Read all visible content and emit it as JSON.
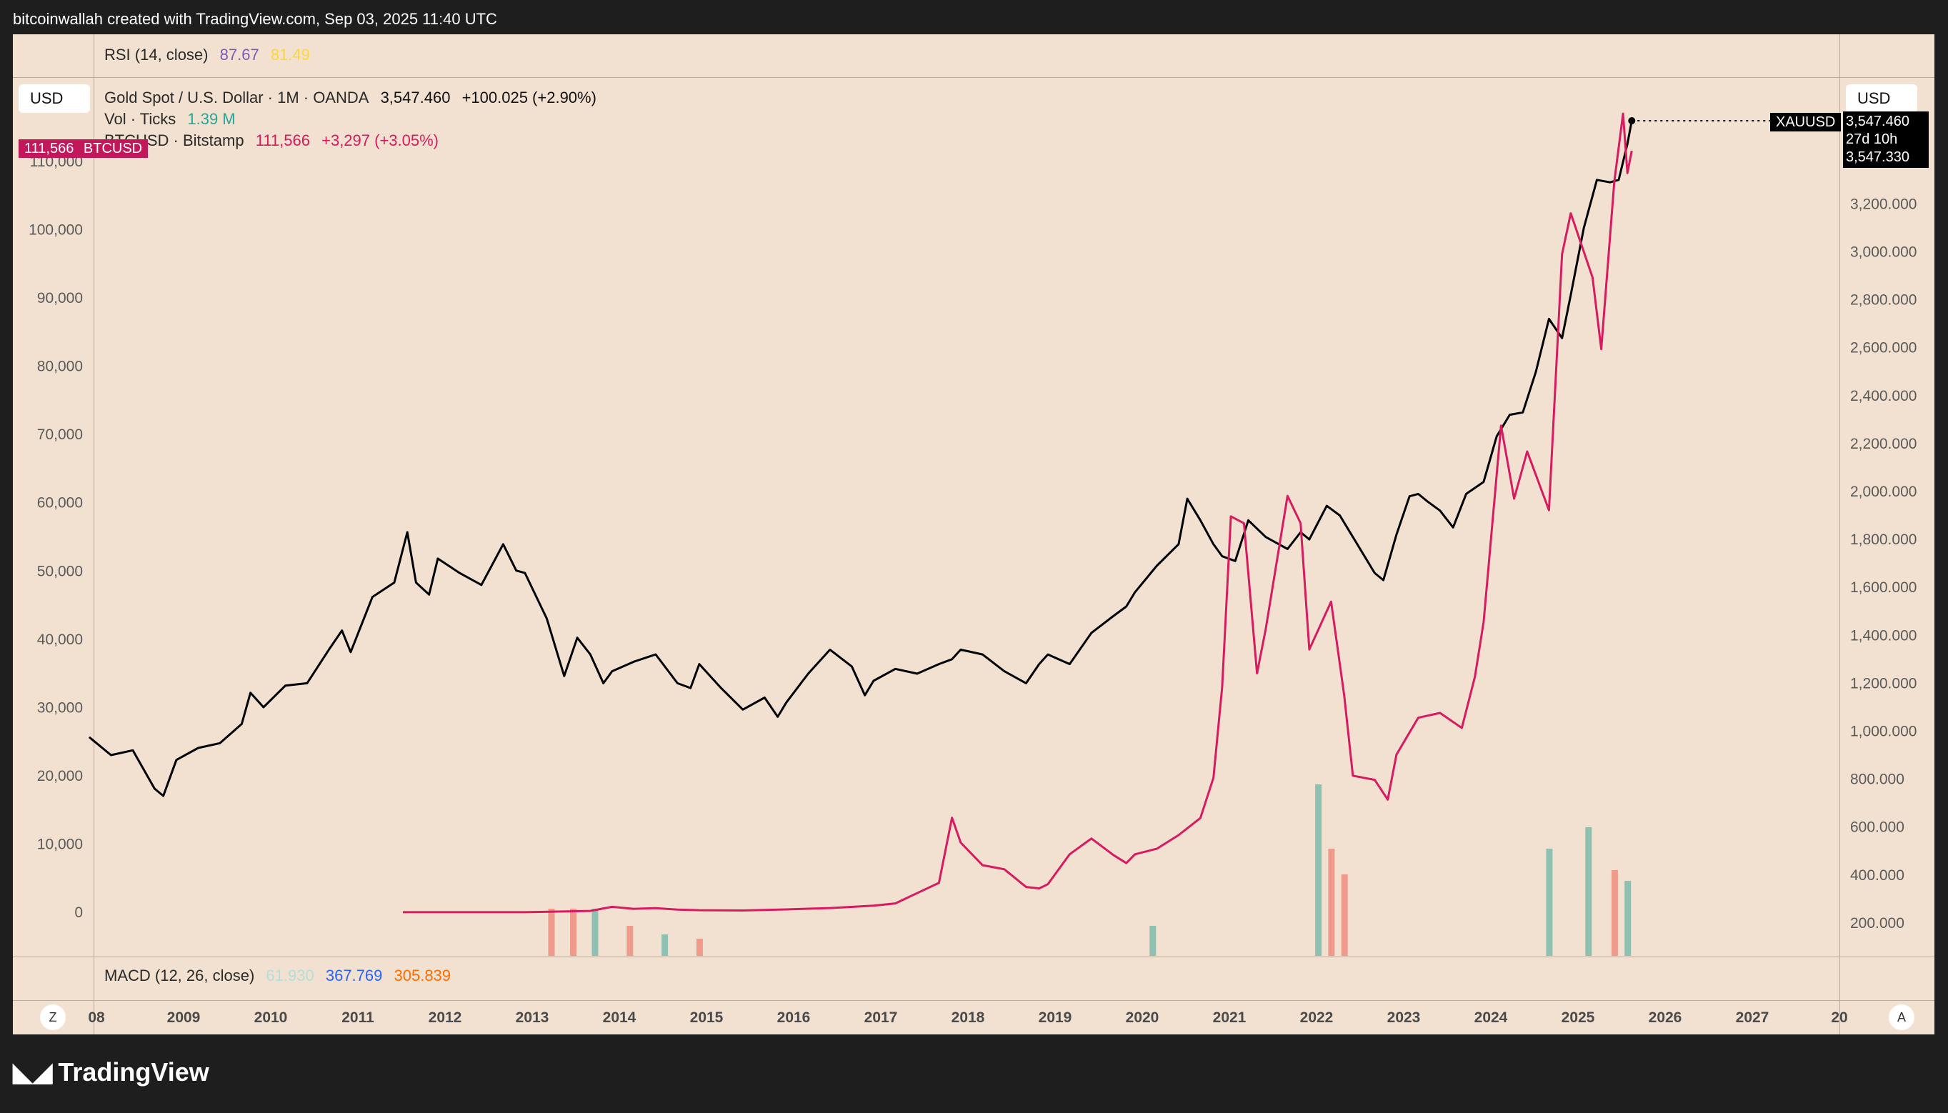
{
  "header": {
    "credit": "bitcoinwallah created with TradingView.com, Sep 03, 2025 11:40 UTC"
  },
  "currency_left": "USD",
  "currency_right": "USD",
  "rsi": {
    "label": "RSI (14, close)",
    "v1": "87.67",
    "v2": "81.49",
    "color1": "#7e57c2",
    "color2": "#fdd835"
  },
  "gold_legend": {
    "title": "Gold Spot / U.S. Dollar · 1M · OANDA",
    "last": "3,547.460",
    "change": "+100.025 (+2.90%)"
  },
  "vol_legend": {
    "title": "Vol · Ticks",
    "value": "1.39 M",
    "color": "#26a69a"
  },
  "btc_legend": {
    "title": "BTCUSD · Bitstamp",
    "last": "111,566",
    "change": "+3,297 (+3.05%)",
    "color": "#d81b60"
  },
  "btc_tag": {
    "price": "111,566",
    "symbol": "BTCUSD"
  },
  "gold_tag": {
    "symbol": "XAUUSD",
    "price": "3,547.460",
    "countdown": "27d 10h",
    "price2": "3,547.330"
  },
  "macd": {
    "label": "MACD (12, 26, close)",
    "v1": "61.930",
    "v2": "367.769",
    "v3": "305.839",
    "color1": "#b2dfdb",
    "color2": "#2962ff",
    "color3": "#ff6d00"
  },
  "bottom_buttons": {
    "left": "Z",
    "right": "A"
  },
  "logo": "TradingView",
  "chart_data": {
    "type": "line",
    "x_ticks": [
      "08",
      "2009",
      "2010",
      "2011",
      "2012",
      "2013",
      "2014",
      "2015",
      "2016",
      "2017",
      "2018",
      "2019",
      "2020",
      "2021",
      "2022",
      "2023",
      "2024",
      "2025",
      "2026",
      "2027",
      "20"
    ],
    "left_axis": {
      "label": "BTCUSD",
      "ticks": [
        "0",
        "10,000",
        "20,000",
        "30,000",
        "40,000",
        "50,000",
        "60,000",
        "70,000",
        "80,000",
        "90,000",
        "100,000",
        "110,000"
      ]
    },
    "right_axis": {
      "label": "XAUUSD",
      "ticks": [
        "200.000",
        "400.000",
        "600.000",
        "800.000",
        "1,000.000",
        "1,200.000",
        "1,400.000",
        "1,600.000",
        "1,800.000",
        "2,000.000",
        "2,200.000",
        "2,400.000",
        "2,600.000",
        "2,800.000",
        "3,000.000",
        "3,200.000"
      ]
    },
    "series": [
      {
        "name": "XAUUSD",
        "color": "#000000",
        "axis": "right",
        "points": [
          [
            2008.0,
            975
          ],
          [
            2008.25,
            900
          ],
          [
            2008.5,
            920
          ],
          [
            2008.75,
            760
          ],
          [
            2008.85,
            730
          ],
          [
            2009.0,
            880
          ],
          [
            2009.25,
            930
          ],
          [
            2009.5,
            950
          ],
          [
            2009.75,
            1030
          ],
          [
            2009.85,
            1160
          ],
          [
            2010.0,
            1100
          ],
          [
            2010.25,
            1190
          ],
          [
            2010.5,
            1200
          ],
          [
            2010.75,
            1340
          ],
          [
            2010.9,
            1420
          ],
          [
            2011.0,
            1330
          ],
          [
            2011.25,
            1560
          ],
          [
            2011.5,
            1620
          ],
          [
            2011.65,
            1830
          ],
          [
            2011.75,
            1620
          ],
          [
            2011.9,
            1570
          ],
          [
            2012.0,
            1720
          ],
          [
            2012.25,
            1660
          ],
          [
            2012.5,
            1610
          ],
          [
            2012.75,
            1780
          ],
          [
            2012.9,
            1670
          ],
          [
            2013.0,
            1660
          ],
          [
            2013.25,
            1470
          ],
          [
            2013.45,
            1230
          ],
          [
            2013.6,
            1390
          ],
          [
            2013.75,
            1320
          ],
          [
            2013.9,
            1200
          ],
          [
            2014.0,
            1250
          ],
          [
            2014.25,
            1290
          ],
          [
            2014.5,
            1320
          ],
          [
            2014.75,
            1200
          ],
          [
            2014.9,
            1180
          ],
          [
            2015.0,
            1280
          ],
          [
            2015.25,
            1180
          ],
          [
            2015.5,
            1090
          ],
          [
            2015.75,
            1140
          ],
          [
            2015.9,
            1060
          ],
          [
            2016.0,
            1120
          ],
          [
            2016.25,
            1240
          ],
          [
            2016.5,
            1340
          ],
          [
            2016.75,
            1270
          ],
          [
            2016.9,
            1150
          ],
          [
            2017.0,
            1210
          ],
          [
            2017.25,
            1260
          ],
          [
            2017.5,
            1240
          ],
          [
            2017.75,
            1280
          ],
          [
            2017.9,
            1300
          ],
          [
            2018.0,
            1340
          ],
          [
            2018.25,
            1320
          ],
          [
            2018.5,
            1250
          ],
          [
            2018.75,
            1200
          ],
          [
            2018.9,
            1280
          ],
          [
            2019.0,
            1320
          ],
          [
            2019.25,
            1280
          ],
          [
            2019.5,
            1410
          ],
          [
            2019.75,
            1480
          ],
          [
            2019.9,
            1520
          ],
          [
            2020.0,
            1580
          ],
          [
            2020.25,
            1690
          ],
          [
            2020.5,
            1780
          ],
          [
            2020.6,
            1970
          ],
          [
            2020.75,
            1880
          ],
          [
            2020.9,
            1780
          ],
          [
            2021.0,
            1730
          ],
          [
            2021.15,
            1710
          ],
          [
            2021.3,
            1880
          ],
          [
            2021.5,
            1810
          ],
          [
            2021.75,
            1760
          ],
          [
            2021.9,
            1830
          ],
          [
            2022.0,
            1800
          ],
          [
            2022.2,
            1940
          ],
          [
            2022.35,
            1900
          ],
          [
            2022.5,
            1810
          ],
          [
            2022.75,
            1660
          ],
          [
            2022.85,
            1630
          ],
          [
            2023.0,
            1820
          ],
          [
            2023.15,
            1980
          ],
          [
            2023.25,
            1990
          ],
          [
            2023.35,
            1960
          ],
          [
            2023.5,
            1920
          ],
          [
            2023.65,
            1850
          ],
          [
            2023.8,
            1990
          ],
          [
            2024.0,
            2040
          ],
          [
            2024.15,
            2230
          ],
          [
            2024.3,
            2320
          ],
          [
            2024.45,
            2330
          ],
          [
            2024.6,
            2500
          ],
          [
            2024.75,
            2720
          ],
          [
            2024.9,
            2640
          ],
          [
            2025.0,
            2820
          ],
          [
            2025.15,
            3100
          ],
          [
            2025.3,
            3300
          ],
          [
            2025.45,
            3290
          ],
          [
            2025.55,
            3300
          ],
          [
            2025.65,
            3450
          ],
          [
            2025.7,
            3547
          ]
        ]
      },
      {
        "name": "BTCUSD",
        "color": "#d81b60",
        "axis": "left",
        "points": [
          [
            2011.6,
            10
          ],
          [
            2013.0,
            13
          ],
          [
            2013.75,
            200
          ],
          [
            2014.0,
            800
          ],
          [
            2014.25,
            500
          ],
          [
            2014.5,
            600
          ],
          [
            2014.75,
            400
          ],
          [
            2015.0,
            300
          ],
          [
            2015.5,
            260
          ],
          [
            2016.0,
            420
          ],
          [
            2016.5,
            620
          ],
          [
            2017.0,
            960
          ],
          [
            2017.25,
            1300
          ],
          [
            2017.5,
            2800
          ],
          [
            2017.75,
            4300
          ],
          [
            2017.9,
            13850
          ],
          [
            2018.0,
            10200
          ],
          [
            2018.25,
            6900
          ],
          [
            2018.5,
            6300
          ],
          [
            2018.75,
            3700
          ],
          [
            2018.9,
            3500
          ],
          [
            2019.0,
            4100
          ],
          [
            2019.25,
            8500
          ],
          [
            2019.5,
            10800
          ],
          [
            2019.75,
            8400
          ],
          [
            2019.9,
            7200
          ],
          [
            2020.0,
            8500
          ],
          [
            2020.25,
            9300
          ],
          [
            2020.5,
            11300
          ],
          [
            2020.75,
            13800
          ],
          [
            2020.9,
            19700
          ],
          [
            2021.0,
            33000
          ],
          [
            2021.1,
            58000
          ],
          [
            2021.25,
            57000
          ],
          [
            2021.4,
            35000
          ],
          [
            2021.5,
            41500
          ],
          [
            2021.75,
            61000
          ],
          [
            2021.9,
            57000
          ],
          [
            2022.0,
            38500
          ],
          [
            2022.25,
            45500
          ],
          [
            2022.4,
            31800
          ],
          [
            2022.5,
            20000
          ],
          [
            2022.75,
            19400
          ],
          [
            2022.9,
            16500
          ],
          [
            2023.0,
            23100
          ],
          [
            2023.25,
            28500
          ],
          [
            2023.5,
            29200
          ],
          [
            2023.75,
            27000
          ],
          [
            2023.9,
            34500
          ],
          [
            2024.0,
            42500
          ],
          [
            2024.2,
            71300
          ],
          [
            2024.35,
            60600
          ],
          [
            2024.5,
            67500
          ],
          [
            2024.75,
            58900
          ],
          [
            2024.9,
            96400
          ],
          [
            2025.0,
            102400
          ],
          [
            2025.25,
            93000
          ],
          [
            2025.35,
            82500
          ],
          [
            2025.5,
            107100
          ],
          [
            2025.6,
            117000
          ],
          [
            2025.65,
            108300
          ],
          [
            2025.7,
            111566
          ]
        ]
      }
    ],
    "volume": {
      "name": "Vol · Ticks",
      "up_color": "#8ec1b2",
      "down_color": "#f09a8c",
      "bars": [
        {
          "x": 2013.3,
          "v": 0.22,
          "c": "down"
        },
        {
          "x": 2013.55,
          "v": 0.22,
          "c": "down"
        },
        {
          "x": 2013.8,
          "v": 0.22,
          "c": "up"
        },
        {
          "x": 2014.2,
          "v": 0.14,
          "c": "down"
        },
        {
          "x": 2014.6,
          "v": 0.1,
          "c": "up"
        },
        {
          "x": 2015.0,
          "v": 0.08,
          "c": "down"
        },
        {
          "x": 2020.2,
          "v": 0.14,
          "c": "up"
        },
        {
          "x": 2022.1,
          "v": 0.8,
          "c": "up"
        },
        {
          "x": 2022.25,
          "v": 0.5,
          "c": "down"
        },
        {
          "x": 2022.4,
          "v": 0.38,
          "c": "down"
        },
        {
          "x": 2024.75,
          "v": 0.5,
          "c": "up"
        },
        {
          "x": 2025.2,
          "v": 0.6,
          "c": "up"
        },
        {
          "x": 2025.5,
          "v": 0.4,
          "c": "down"
        },
        {
          "x": 2025.65,
          "v": 0.35,
          "c": "up"
        }
      ]
    }
  }
}
